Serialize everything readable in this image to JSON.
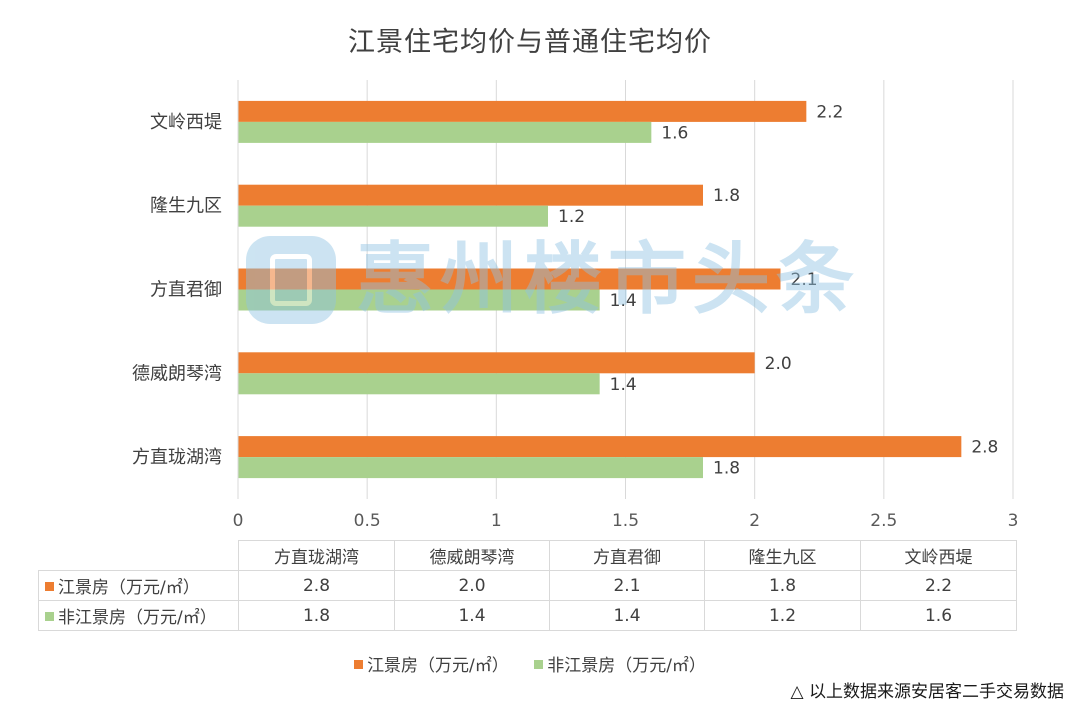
{
  "title": "江景住宅均价与普通住宅均价",
  "chart_data": {
    "type": "bar",
    "orientation": "horizontal",
    "categories": [
      "文岭西堤",
      "隆生九区",
      "方直君御",
      "德威朗琴湾",
      "方直珑湖湾"
    ],
    "series": [
      {
        "name": "江景房（万元/㎡）",
        "color": "#ed7d31",
        "values": [
          2.2,
          1.8,
          2.1,
          2.0,
          2.8
        ],
        "labels": [
          "2.2",
          "1.8",
          "2.1",
          "2.0",
          "2.8"
        ]
      },
      {
        "name": "非江景房（万元/㎡）",
        "color": "#a9d18e",
        "values": [
          1.6,
          1.2,
          1.4,
          1.4,
          1.8
        ],
        "labels": [
          "1.6",
          "1.2",
          "1.4",
          "1.4",
          "1.8"
        ]
      }
    ],
    "xlim": [
      0,
      3
    ],
    "xticks": [
      "0",
      "0.5",
      "1",
      "1.5",
      "2",
      "2.5",
      "3"
    ],
    "grid": true,
    "legend_position": "bottom"
  },
  "table": {
    "columns": [
      "方直珑湖湾",
      "德威朗琴湾",
      "方直君御",
      "隆生九区",
      "文岭西堤"
    ],
    "rows": [
      {
        "label": "江景房（万元/㎡）",
        "color": "#ed7d31",
        "cells": [
          "2.8",
          "2.0",
          "2.1",
          "1.8",
          "2.2"
        ]
      },
      {
        "label": "非江景房（万元/㎡）",
        "color": "#a9d18e",
        "cells": [
          "1.8",
          "1.4",
          "1.4",
          "1.2",
          "1.6"
        ]
      }
    ]
  },
  "legend": [
    "江景房（万元/㎡）",
    "非江景房（万元/㎡）"
  ],
  "watermark": "惠州楼市头条",
  "source_note": "△ 以上数据来源安居客二手交易数据"
}
